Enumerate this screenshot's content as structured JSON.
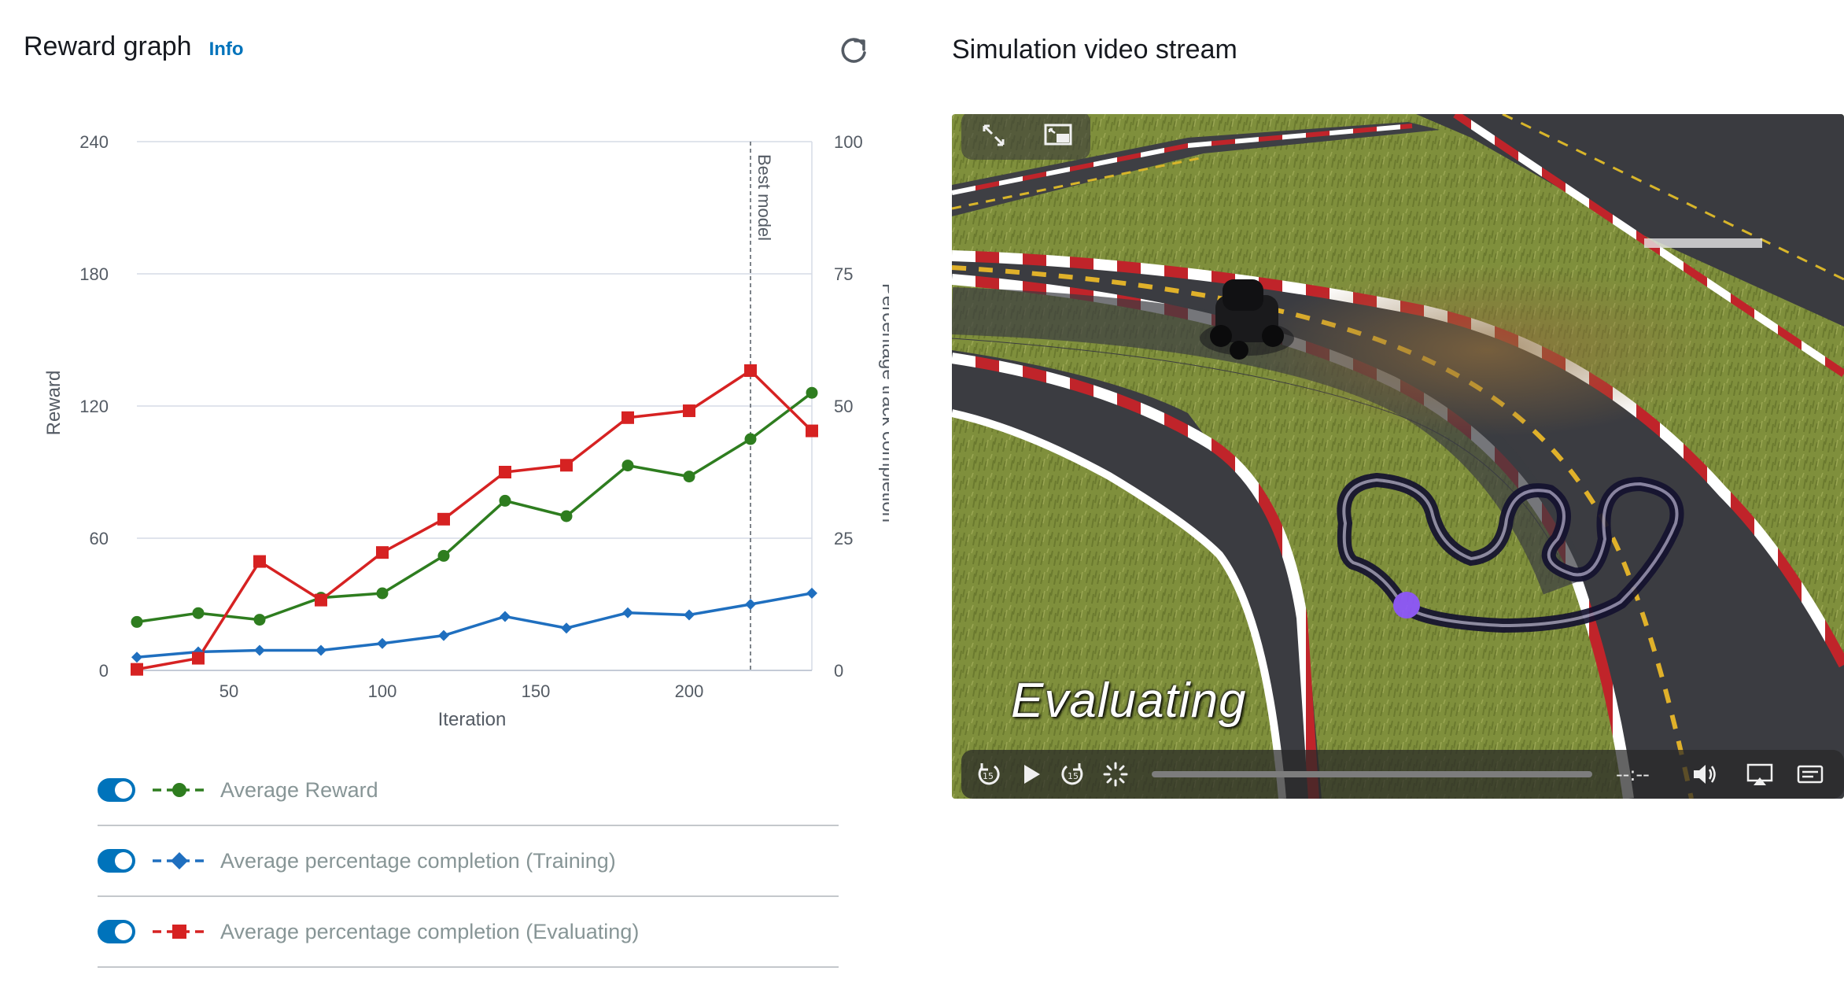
{
  "left_header": {
    "title": "Reward graph",
    "info": "Info"
  },
  "right_header": {
    "title": "Simulation video stream"
  },
  "video": {
    "overlay_text": "Evaluating",
    "time": "--:--",
    "skip_back": "15",
    "skip_forward": "15"
  },
  "legend": [
    {
      "label": "Average Reward",
      "color": "#2e7d1f",
      "marker": "circle",
      "enabled": true
    },
    {
      "label": "Average percentage completion (Training)",
      "color": "#1f6fbf",
      "marker": "diamond",
      "enabled": true
    },
    {
      "label": "Average percentage completion (Evaluating)",
      "color": "#d62222",
      "marker": "square",
      "enabled": true
    }
  ],
  "chart_data": {
    "type": "line",
    "xlabel": "Iteration",
    "ylabel": "Reward",
    "y2label": "Percentage track completion",
    "xlim": [
      20,
      240
    ],
    "ylim": [
      0,
      240
    ],
    "y2lim": [
      0,
      100
    ],
    "x_ticks": [
      50,
      100,
      150,
      200
    ],
    "y_ticks": [
      0,
      60,
      120,
      180,
      240
    ],
    "y2_ticks": [
      0,
      25,
      50,
      75,
      100
    ],
    "annotation": {
      "label": "Best model",
      "x": 220
    },
    "series": [
      {
        "name": "Average Reward",
        "axis": "left",
        "color": "#2e7d1f",
        "marker": "circle",
        "x": [
          20,
          40,
          60,
          80,
          100,
          120,
          140,
          160,
          180,
          200,
          220,
          240
        ],
        "values": [
          22,
          26,
          23,
          33,
          35,
          52,
          77,
          70,
          93,
          88,
          105,
          126
        ]
      },
      {
        "name": "Average percentage completion (Training)",
        "axis": "right",
        "color": "#1f6fbf",
        "marker": "diamond",
        "x": [
          20,
          40,
          60,
          80,
          100,
          120,
          140,
          160,
          180,
          200,
          220,
          240
        ],
        "values": [
          2.5,
          3.5,
          3.8,
          3.8,
          5.1,
          6.6,
          10.2,
          8,
          10.9,
          10.5,
          12.5,
          14.6
        ]
      },
      {
        "name": "Average percentage completion (Evaluating)",
        "axis": "right",
        "color": "#d62222",
        "marker": "square",
        "x": [
          20,
          40,
          60,
          80,
          100,
          120,
          140,
          160,
          180,
          200,
          220,
          240
        ],
        "values": [
          0.2,
          2.3,
          20.6,
          13.3,
          22.3,
          28.6,
          37.5,
          38.8,
          47.8,
          49.1,
          56.7,
          45.3
        ]
      }
    ]
  }
}
